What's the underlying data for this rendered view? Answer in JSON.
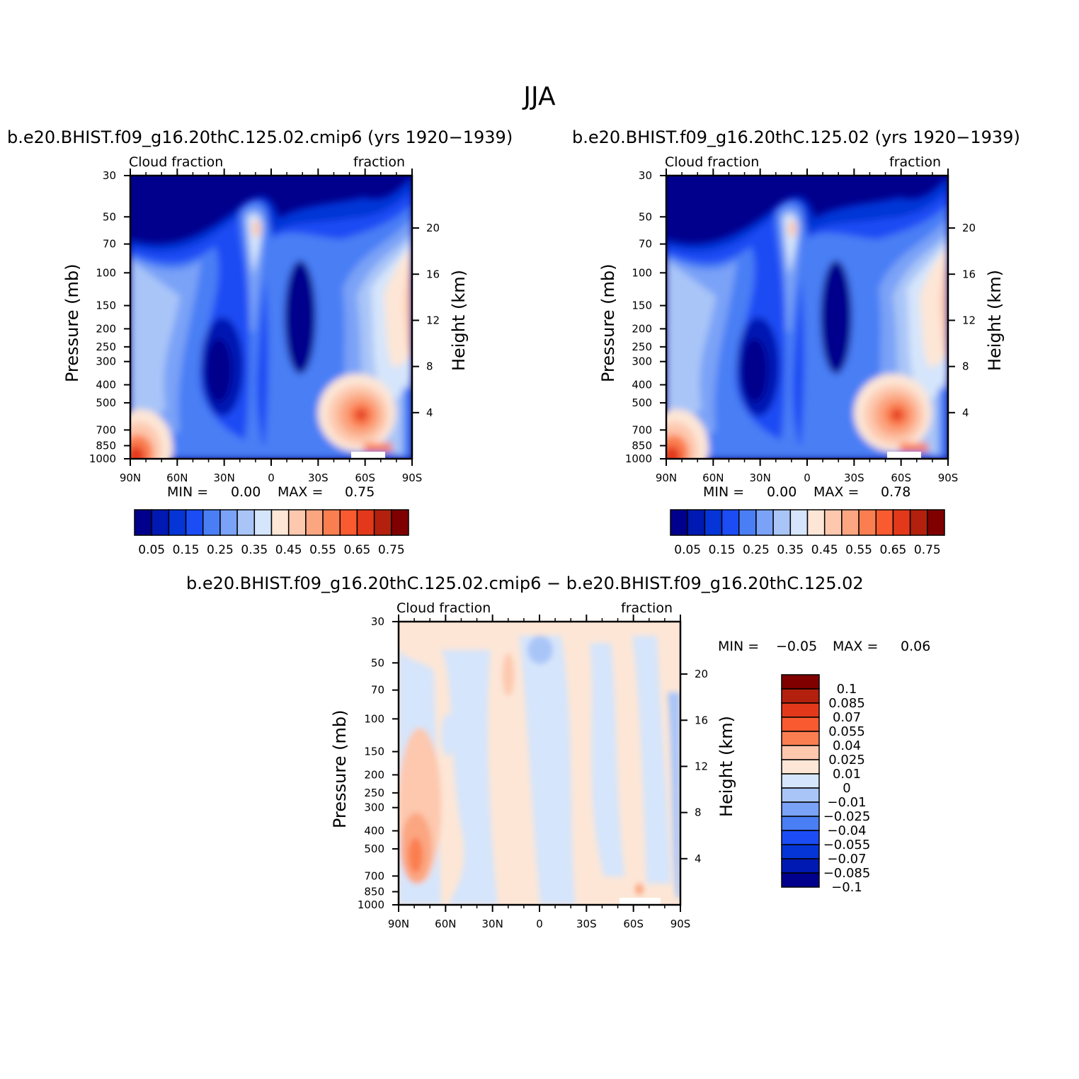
{
  "figure": {
    "title": "JJA",
    "panels": {
      "left": {
        "title": "b.e20.BHIST.f09_g16.20thC.125.02.cmip6 (yrs 1920−1939)",
        "left_label": "Cloud fraction",
        "right_label": "fraction",
        "min_text": "MIN =",
        "min_value": "0.00",
        "max_text": "MAX =",
        "max_value": "0.75"
      },
      "right": {
        "title": "b.e20.BHIST.f09_g16.20thC.125.02 (yrs 1920−1939)",
        "left_label": "Cloud fraction",
        "right_label": "fraction",
        "min_text": "MIN =",
        "min_value": "0.00",
        "max_text": "MAX =",
        "max_value": "0.78"
      },
      "diff": {
        "title": "b.e20.BHIST.f09_g16.20thC.125.02.cmip6 − b.e20.BHIST.f09_g16.20thC.125.02",
        "left_label": "Cloud fraction",
        "right_label": "fraction",
        "min_text": "MIN =",
        "min_value": "−0.05",
        "max_text": "MAX =",
        "max_value": "0.06"
      }
    },
    "axes": {
      "ylabel_left": "Pressure (mb)",
      "ylabel_right": "Height (km)",
      "pressure_ticks": [
        "30",
        "50",
        "70",
        "100",
        "150",
        "200",
        "250",
        "300",
        "400",
        "500",
        "700",
        "850",
        "1000"
      ],
      "height_ticks": [
        "20",
        "16",
        "12",
        "8",
        "4"
      ],
      "lat_ticks": [
        "90N",
        "60N",
        "30N",
        "0",
        "30S",
        "60S",
        "90S"
      ]
    },
    "colorbars": {
      "abs_colors": [
        "#00008c",
        "#0019b2",
        "#0535d6",
        "#1b4cf4",
        "#4a7ef5",
        "#7aa2f7",
        "#a9c5f8",
        "#d5e5fb",
        "#fde6d6",
        "#fdc8ae",
        "#fba681",
        "#fb7e50",
        "#f95a2f",
        "#e3391a",
        "#b4200e",
        "#800000"
      ],
      "abs_labels": [
        "0.05",
        "0.15",
        "0.25",
        "0.35",
        "0.45",
        "0.55",
        "0.65",
        "0.75"
      ],
      "diff_colors": [
        "#800000",
        "#b4200e",
        "#e3391a",
        "#f95a2f",
        "#fb7e50",
        "#fdc8ae",
        "#fde6d6",
        "#d5e5fb",
        "#a9c5f8",
        "#7aa2f7",
        "#4a7ef5",
        "#1b4cf4",
        "#0535d6",
        "#0019b2",
        "#00008c"
      ],
      "diff_labels": [
        "0.1",
        "0.085",
        "0.07",
        "0.055",
        "0.04",
        "0.025",
        "0.01",
        "0",
        "−0.01",
        "−0.025",
        "−0.04",
        "−0.055",
        "−0.07",
        "−0.085",
        "−0.1"
      ]
    }
  },
  "chart_data": [
    {
      "type": "heatmap",
      "title": "b.e20.BHIST.f09_g16.20thC.125.02.cmip6 (yrs 1920−1939)",
      "xlabel": "",
      "ylabel": "Pressure (mb)",
      "y2label": "Height (km)",
      "x": [
        "90N",
        "60N",
        "30N",
        "0",
        "30S",
        "60S",
        "90S"
      ],
      "y": [
        30,
        50,
        70,
        100,
        150,
        200,
        250,
        300,
        400,
        500,
        700,
        850,
        1000
      ],
      "ylim": [
        1000,
        30
      ],
      "y_scale": "log",
      "min": 0.0,
      "max": 0.75,
      "levels": [
        0.05,
        0.1,
        0.15,
        0.2,
        0.25,
        0.3,
        0.35,
        0.4,
        0.45,
        0.5,
        0.55,
        0.6,
        0.65,
        0.7,
        0.75
      ]
    },
    {
      "type": "heatmap",
      "title": "b.e20.BHIST.f09_g16.20thC.125.02 (yrs 1920−1939)",
      "xlabel": "",
      "ylabel": "Pressure (mb)",
      "y2label": "Height (km)",
      "x": [
        "90N",
        "60N",
        "30N",
        "0",
        "30S",
        "60S",
        "90S"
      ],
      "y": [
        30,
        50,
        70,
        100,
        150,
        200,
        250,
        300,
        400,
        500,
        700,
        850,
        1000
      ],
      "ylim": [
        1000,
        30
      ],
      "y_scale": "log",
      "min": 0.0,
      "max": 0.78,
      "levels": [
        0.05,
        0.1,
        0.15,
        0.2,
        0.25,
        0.3,
        0.35,
        0.4,
        0.45,
        0.5,
        0.55,
        0.6,
        0.65,
        0.7,
        0.75
      ]
    },
    {
      "type": "heatmap",
      "title": "b.e20.BHIST.f09_g16.20thC.125.02.cmip6 − b.e20.BHIST.f09_g16.20thC.125.02",
      "xlabel": "",
      "ylabel": "Pressure (mb)",
      "y2label": "Height (km)",
      "x": [
        "90N",
        "60N",
        "30N",
        "0",
        "30S",
        "60S",
        "90S"
      ],
      "y": [
        30,
        50,
        70,
        100,
        150,
        200,
        250,
        300,
        400,
        500,
        700,
        850,
        1000
      ],
      "ylim": [
        1000,
        30
      ],
      "y_scale": "log",
      "min": -0.05,
      "max": 0.06,
      "levels": [
        -0.1,
        -0.085,
        -0.07,
        -0.055,
        -0.04,
        -0.025,
        -0.01,
        0,
        0.01,
        0.025,
        0.04,
        0.055,
        0.07,
        0.085,
        0.1
      ]
    }
  ]
}
